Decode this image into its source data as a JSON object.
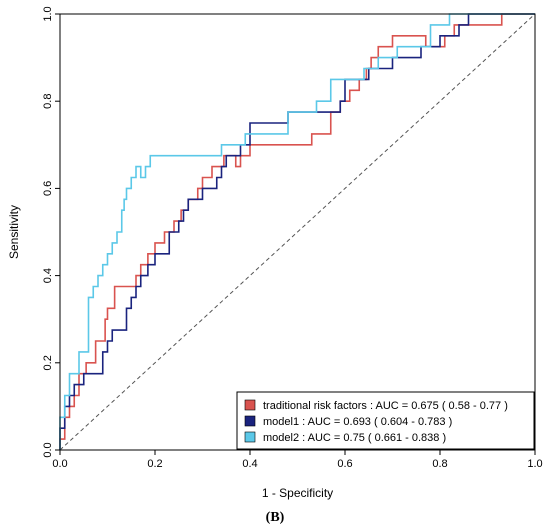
{
  "caption": "(B)",
  "chart_data": {
    "type": "line",
    "xlabel": "1 - Specificity",
    "ylabel": "Sensitivity",
    "xlim": [
      0,
      1
    ],
    "ylim": [
      0,
      1
    ],
    "x_ticks": [
      "0.0",
      "0.2",
      "0.4",
      "0.6",
      "0.8",
      "1.0"
    ],
    "y_ticks": [
      "0.0",
      "0.2",
      "0.4",
      "0.6",
      "0.8",
      "1.0"
    ],
    "grid": false,
    "legend_position": "bottom-right",
    "reference_line": {
      "x": [
        0,
        1
      ],
      "y": [
        0,
        1
      ],
      "style": "dashed",
      "color": "#555555"
    },
    "series": [
      {
        "name": "traditional risk factors",
        "legend": "traditional risk factors : AUC = 0.675  ( 0.58 - 0.77 )",
        "color": "#d9534f",
        "x": [
          0.0,
          0.0,
          0.01,
          0.01,
          0.02,
          0.02,
          0.03,
          0.03,
          0.04,
          0.04,
          0.055,
          0.055,
          0.075,
          0.075,
          0.095,
          0.095,
          0.1,
          0.1,
          0.115,
          0.115,
          0.16,
          0.16,
          0.17,
          0.17,
          0.185,
          0.185,
          0.2,
          0.2,
          0.22,
          0.22,
          0.24,
          0.24,
          0.255,
          0.255,
          0.27,
          0.27,
          0.29,
          0.29,
          0.3,
          0.3,
          0.32,
          0.32,
          0.345,
          0.345,
          0.37,
          0.37,
          0.38,
          0.38,
          0.4,
          0.4,
          0.47,
          0.47,
          0.53,
          0.53,
          0.57,
          0.57,
          0.59,
          0.59,
          0.61,
          0.61,
          0.63,
          0.63,
          0.645,
          0.645,
          0.655,
          0.655,
          0.67,
          0.67,
          0.7,
          0.7,
          0.73,
          0.73,
          0.77,
          0.77,
          0.81,
          0.81,
          0.83,
          0.83,
          0.88,
          0.88,
          0.93,
          0.93,
          1.0
        ],
        "y": [
          0.0,
          0.025,
          0.025,
          0.075,
          0.075,
          0.1,
          0.1,
          0.125,
          0.125,
          0.175,
          0.175,
          0.2,
          0.2,
          0.25,
          0.25,
          0.3,
          0.3,
          0.325,
          0.325,
          0.375,
          0.375,
          0.4,
          0.4,
          0.425,
          0.425,
          0.45,
          0.45,
          0.475,
          0.475,
          0.5,
          0.5,
          0.525,
          0.525,
          0.55,
          0.55,
          0.575,
          0.575,
          0.6,
          0.6,
          0.625,
          0.625,
          0.65,
          0.65,
          0.675,
          0.675,
          0.65,
          0.65,
          0.675,
          0.675,
          0.7,
          0.7,
          0.7,
          0.7,
          0.725,
          0.725,
          0.775,
          0.775,
          0.8,
          0.8,
          0.825,
          0.825,
          0.85,
          0.85,
          0.875,
          0.875,
          0.9,
          0.9,
          0.925,
          0.925,
          0.95,
          0.95,
          0.95,
          0.95,
          0.925,
          0.925,
          0.95,
          0.95,
          0.975,
          0.975,
          0.975,
          0.975,
          1.0,
          1.0
        ]
      },
      {
        "name": "model1",
        "legend": "model1 : AUC = 0.693  ( 0.604 - 0.783 )",
        "color": "#1a237e",
        "x": [
          0.0,
          0.0,
          0.01,
          0.01,
          0.02,
          0.02,
          0.03,
          0.03,
          0.05,
          0.05,
          0.09,
          0.09,
          0.1,
          0.1,
          0.11,
          0.11,
          0.14,
          0.14,
          0.15,
          0.15,
          0.16,
          0.16,
          0.17,
          0.17,
          0.185,
          0.185,
          0.2,
          0.2,
          0.23,
          0.23,
          0.25,
          0.25,
          0.26,
          0.26,
          0.27,
          0.27,
          0.3,
          0.3,
          0.33,
          0.33,
          0.34,
          0.34,
          0.35,
          0.35,
          0.38,
          0.38,
          0.4,
          0.4,
          0.41,
          0.41,
          0.48,
          0.48,
          0.59,
          0.59,
          0.6,
          0.6,
          0.65,
          0.65,
          0.7,
          0.7,
          0.76,
          0.76,
          0.8,
          0.8,
          0.84,
          0.84,
          0.86,
          0.86,
          1.0
        ],
        "y": [
          0.0,
          0.05,
          0.05,
          0.1,
          0.1,
          0.125,
          0.125,
          0.15,
          0.15,
          0.175,
          0.175,
          0.225,
          0.225,
          0.25,
          0.25,
          0.275,
          0.275,
          0.325,
          0.325,
          0.35,
          0.35,
          0.375,
          0.375,
          0.4,
          0.4,
          0.425,
          0.425,
          0.45,
          0.45,
          0.5,
          0.5,
          0.525,
          0.525,
          0.55,
          0.55,
          0.575,
          0.575,
          0.6,
          0.6,
          0.625,
          0.625,
          0.65,
          0.65,
          0.675,
          0.675,
          0.7,
          0.7,
          0.75,
          0.75,
          0.75,
          0.75,
          0.775,
          0.775,
          0.8,
          0.8,
          0.85,
          0.85,
          0.875,
          0.875,
          0.9,
          0.9,
          0.925,
          0.925,
          0.95,
          0.95,
          0.975,
          0.975,
          1.0,
          1.0
        ]
      },
      {
        "name": "model2",
        "legend": "model2 : AUC = 0.75  ( 0.661 - 0.838 )",
        "color": "#5bc8e8",
        "x": [
          0.0,
          0.0,
          0.01,
          0.01,
          0.02,
          0.02,
          0.04,
          0.04,
          0.06,
          0.06,
          0.07,
          0.07,
          0.08,
          0.08,
          0.09,
          0.09,
          0.1,
          0.1,
          0.11,
          0.11,
          0.12,
          0.12,
          0.13,
          0.13,
          0.135,
          0.135,
          0.14,
          0.14,
          0.15,
          0.15,
          0.16,
          0.16,
          0.17,
          0.17,
          0.18,
          0.18,
          0.19,
          0.19,
          0.21,
          0.21,
          0.34,
          0.34,
          0.39,
          0.39,
          0.48,
          0.48,
          0.54,
          0.54,
          0.57,
          0.57,
          0.64,
          0.64,
          0.67,
          0.67,
          0.71,
          0.71,
          0.78,
          0.78,
          0.82,
          0.82,
          1.0
        ],
        "y": [
          0.0,
          0.075,
          0.075,
          0.125,
          0.125,
          0.175,
          0.175,
          0.225,
          0.225,
          0.35,
          0.35,
          0.375,
          0.375,
          0.4,
          0.4,
          0.425,
          0.425,
          0.45,
          0.45,
          0.475,
          0.475,
          0.5,
          0.5,
          0.55,
          0.55,
          0.575,
          0.575,
          0.6,
          0.6,
          0.625,
          0.625,
          0.65,
          0.65,
          0.625,
          0.625,
          0.65,
          0.65,
          0.675,
          0.675,
          0.675,
          0.675,
          0.7,
          0.7,
          0.725,
          0.725,
          0.775,
          0.775,
          0.8,
          0.8,
          0.85,
          0.85,
          0.875,
          0.875,
          0.9,
          0.9,
          0.925,
          0.925,
          0.975,
          0.975,
          1.0,
          1.0
        ]
      }
    ]
  }
}
